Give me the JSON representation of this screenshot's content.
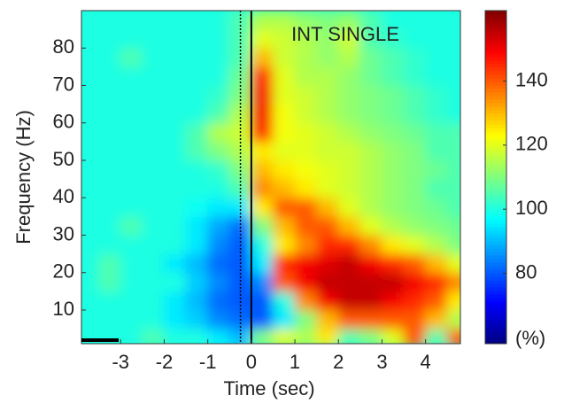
{
  "chart_data": {
    "type": "heatmap",
    "title": "INT SINGLE",
    "xlabel": "Time (sec)",
    "ylabel": "Frequency (Hz)",
    "x": [
      -3.75,
      -3.25,
      -2.75,
      -2.25,
      -1.75,
      -1.25,
      -0.75,
      -0.25,
      0.25,
      0.75,
      1.25,
      1.75,
      2.25,
      2.75,
      3.25,
      3.75,
      4.25,
      4.75
    ],
    "y": [
      2.5,
      7.5,
      12.5,
      17.5,
      22.5,
      27.5,
      32.5,
      37.5,
      42.5,
      47.5,
      52.5,
      57.5,
      62.5,
      67.5,
      72.5,
      77.5,
      82.5,
      87.5
    ],
    "z": [
      [
        100,
        100,
        100,
        105,
        100,
        100,
        95,
        90,
        110,
        120,
        115,
        125,
        105,
        110,
        120,
        140,
        105,
        140
      ],
      [
        100,
        100,
        100,
        100,
        95,
        92,
        85,
        82,
        80,
        95,
        110,
        130,
        140,
        140,
        140,
        140,
        130,
        115
      ],
      [
        100,
        100,
        100,
        100,
        95,
        90,
        82,
        80,
        80,
        100,
        135,
        150,
        155,
        155,
        150,
        145,
        140,
        125
      ],
      [
        100,
        105,
        100,
        100,
        100,
        92,
        85,
        80,
        85,
        140,
        150,
        155,
        155,
        155,
        155,
        150,
        145,
        135
      ],
      [
        100,
        105,
        100,
        100,
        95,
        90,
        82,
        80,
        95,
        145,
        150,
        152,
        155,
        150,
        145,
        140,
        130,
        120
      ],
      [
        100,
        100,
        100,
        100,
        100,
        95,
        85,
        80,
        100,
        125,
        135,
        145,
        145,
        135,
        125,
        120,
        115,
        110
      ],
      [
        100,
        100,
        105,
        100,
        100,
        95,
        88,
        82,
        110,
        130,
        140,
        140,
        130,
        120,
        115,
        112,
        110,
        108
      ],
      [
        100,
        100,
        100,
        100,
        100,
        98,
        95,
        95,
        125,
        140,
        140,
        130,
        120,
        115,
        112,
        110,
        108,
        105
      ],
      [
        100,
        100,
        100,
        100,
        100,
        100,
        100,
        105,
        135,
        130,
        125,
        120,
        118,
        115,
        112,
        110,
        105,
        105
      ],
      [
        100,
        100,
        100,
        100,
        100,
        100,
        102,
        110,
        130,
        125,
        122,
        120,
        118,
        115,
        112,
        110,
        108,
        105
      ],
      [
        100,
        100,
        100,
        100,
        100,
        105,
        110,
        115,
        125,
        120,
        120,
        118,
        118,
        115,
        112,
        110,
        105,
        105
      ],
      [
        100,
        100,
        100,
        100,
        100,
        105,
        115,
        118,
        145,
        122,
        120,
        118,
        115,
        112,
        110,
        108,
        105,
        105
      ],
      [
        100,
        100,
        100,
        100,
        100,
        100,
        105,
        115,
        150,
        122,
        118,
        115,
        112,
        110,
        108,
        105,
        102,
        100
      ],
      [
        100,
        100,
        100,
        100,
        100,
        100,
        102,
        110,
        150,
        120,
        118,
        115,
        112,
        110,
        108,
        105,
        102,
        100
      ],
      [
        100,
        100,
        100,
        100,
        100,
        100,
        100,
        108,
        145,
        120,
        115,
        115,
        112,
        108,
        105,
        102,
        100,
        100
      ],
      [
        100,
        100,
        105,
        100,
        100,
        100,
        100,
        105,
        130,
        118,
        115,
        112,
        115,
        108,
        105,
        102,
        100,
        100
      ],
      [
        100,
        100,
        100,
        100,
        100,
        100,
        100,
        105,
        120,
        118,
        115,
        112,
        118,
        105,
        102,
        100,
        100,
        100
      ],
      [
        100,
        100,
        100,
        100,
        100,
        100,
        100,
        105,
        115,
        115,
        112,
        110,
        112,
        105,
        100,
        100,
        100,
        100
      ]
    ],
    "xlim": [
      -3.9,
      4.8
    ],
    "xticks": [
      -3,
      -2,
      -1,
      0,
      1,
      2,
      3,
      4
    ],
    "ylim": [
      1,
      90
    ],
    "yticks": [
      10,
      20,
      30,
      40,
      50,
      60,
      70,
      80
    ],
    "clim": [
      58,
      162
    ],
    "cticks": [
      80,
      100,
      120,
      140
    ],
    "clabel": "(%)",
    "colormap": "jet",
    "vlines": [
      {
        "x": 0,
        "style": "solid"
      },
      {
        "x": -0.25,
        "style": "dotted"
      }
    ]
  }
}
